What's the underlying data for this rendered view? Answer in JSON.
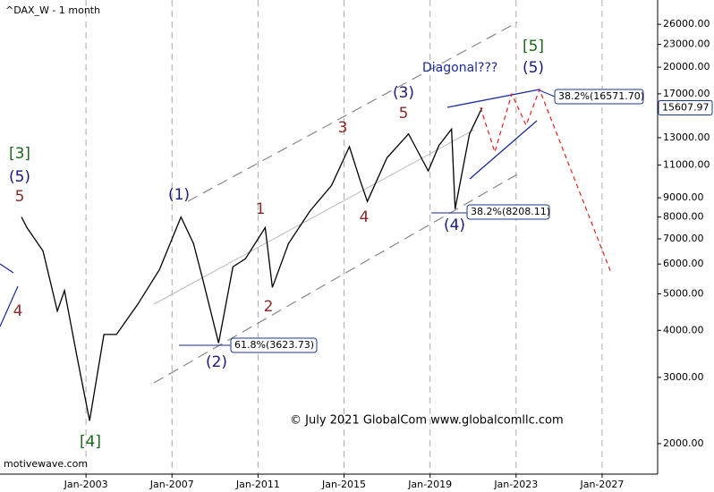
{
  "chart_data": {
    "type": "line",
    "title": "^DAX_W - 1 month",
    "log_y": true,
    "grid": true,
    "color": "#000000",
    "x": [
      "2000-01",
      "2000-04",
      "2001-01",
      "2001-09",
      "2002-01",
      "2002-08",
      "2003-03",
      "2003-11",
      "2004-06",
      "2005-06",
      "2006-06",
      "2007-06",
      "2008-01",
      "2008-06",
      "2009-03",
      "2009-11",
      "2010-06",
      "2011-05",
      "2011-09",
      "2012-06",
      "2013-06",
      "2014-06",
      "2015-04",
      "2015-10",
      "2016-02",
      "2017-01",
      "2018-01",
      "2018-12",
      "2019-06",
      "2020-01",
      "2020-03",
      "2020-11",
      "2021-06"
    ],
    "values": [
      8000,
      7500,
      6500,
      4500,
      5100,
      3400,
      2300,
      3900,
      3900,
      4700,
      5800,
      8000,
      6800,
      5500,
      3700,
      5900,
      6200,
      7500,
      5200,
      6800,
      8300,
      9700,
      12300,
      10000,
      8800,
      11500,
      13300,
      10600,
      12400,
      13700,
      8400,
      13300,
      15600
    ],
    "xlim": [
      "1999-01",
      "2029-08"
    ],
    "xticks": [
      {
        "value": "2003-01",
        "label": "Jan-2003"
      },
      {
        "value": "2007-01",
        "label": "Jan-2007"
      },
      {
        "value": "2011-01",
        "label": "Jan-2011"
      },
      {
        "value": "2015-01",
        "label": "Jan-2015"
      },
      {
        "value": "2019-01",
        "label": "Jan-2019"
      },
      {
        "value": "2023-01",
        "label": "Jan-2023"
      },
      {
        "value": "2027-01",
        "label": "Jan-2027"
      }
    ],
    "ylim": [
      1660,
      30170
    ],
    "yticks": [
      {
        "value": 26000,
        "label": "26000.00"
      },
      {
        "value": 23000,
        "label": "23000.00"
      },
      {
        "value": 20000,
        "label": "20000.00"
      },
      {
        "value": 17000,
        "label": "17000.00"
      },
      {
        "value": 13000,
        "label": "13000.00"
      },
      {
        "value": 11000,
        "label": "11000.00"
      },
      {
        "value": 9000,
        "label": "9000.00"
      },
      {
        "value": 8000,
        "label": "8000.00"
      },
      {
        "value": 7000,
        "label": "7000.00"
      },
      {
        "value": 6000,
        "label": "6000.00"
      },
      {
        "value": 5000,
        "label": "5000.00"
      },
      {
        "value": 4000,
        "label": "4000.00"
      },
      {
        "value": 3000,
        "label": "3000.00"
      },
      {
        "value": 2000,
        "label": "2000.00"
      }
    ],
    "last_price": 15607.97
  },
  "waves": [
    "[3]",
    "(5)",
    "5",
    "4",
    "[4]",
    "(1)",
    "(2)",
    "1",
    "2",
    "3",
    "(3)",
    "5",
    "4",
    "(4)",
    "[5]",
    "(5)"
  ],
  "annotations": [
    "38.2%(16571.70)",
    "38.2%(8208.11)",
    "61.8%(3623.73)",
    "Diagonal???",
    "© July 2021 GlobalCom www.globalcomllc.com",
    "motivewave.com"
  ]
}
